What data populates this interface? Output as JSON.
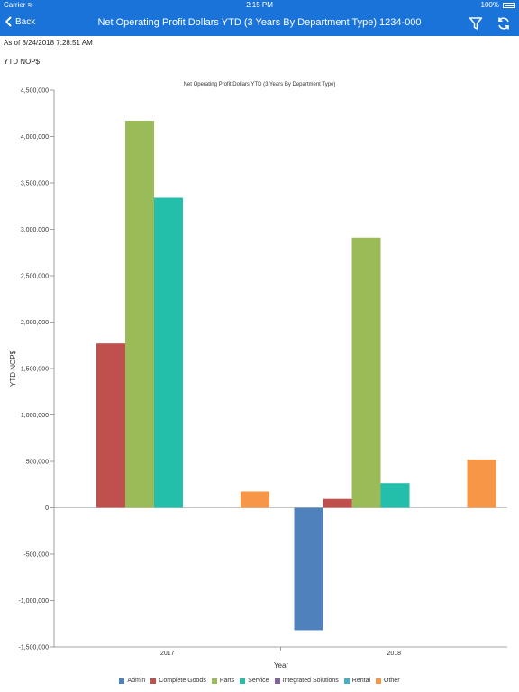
{
  "status_bar": {
    "carrier": "Carrier",
    "time": "2:15 PM",
    "battery": "100%"
  },
  "nav": {
    "back_label": "Back",
    "title": "Net Operating Profit Dollars YTD (3 Years By Department Type) 1234-000"
  },
  "as_of": "As of 8/24/2018 7:28:51 AM",
  "metric_label": "YTD NOP$",
  "chart_data": {
    "type": "bar",
    "title": "Net Operating Profit Dollars YTD (3 Years By Department Type)",
    "xlabel": "Year",
    "ylabel": "YTD NOP$",
    "ylim": [
      -1500000,
      4500000
    ],
    "yticks": [
      4500000,
      4000000,
      3500000,
      3000000,
      2500000,
      2000000,
      1500000,
      1000000,
      500000,
      0,
      -500000,
      -1000000,
      -1500000
    ],
    "ytick_labels": [
      "4,500,000",
      "4,000,000",
      "3,500,000",
      "3,000,000",
      "2,500,000",
      "2,000,000",
      "1,500,000",
      "1,000,000",
      "500,000",
      "0",
      "-500,000",
      "-1,000,000",
      "-1,500,000"
    ],
    "categories": [
      "2017",
      "2018"
    ],
    "legend_position": "bottom",
    "grid": false,
    "series": [
      {
        "name": "Admin",
        "color": "#4f81bd",
        "values": [
          0,
          -1320000
        ]
      },
      {
        "name": "Complete Goods",
        "color": "#c0504d",
        "values": [
          1770000,
          95000
        ]
      },
      {
        "name": "Parts",
        "color": "#9bbb59",
        "values": [
          4170000,
          2910000
        ]
      },
      {
        "name": "Service",
        "color": "#23bfaa",
        "values": [
          3340000,
          265000
        ]
      },
      {
        "name": "Integrated Solutions",
        "color": "#8064a2",
        "values": [
          0,
          0
        ]
      },
      {
        "name": "Rental",
        "color": "#4bacc6",
        "values": [
          0,
          0
        ]
      },
      {
        "name": "Other",
        "color": "#f79646",
        "values": [
          175000,
          520000
        ]
      }
    ]
  }
}
